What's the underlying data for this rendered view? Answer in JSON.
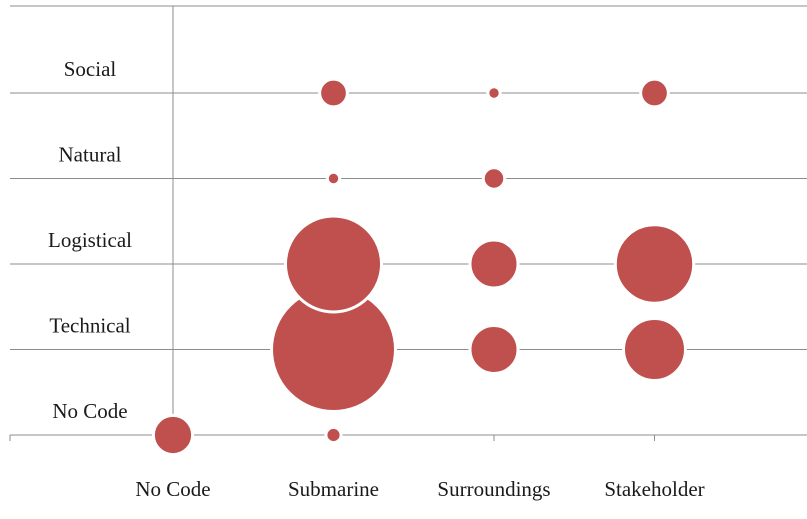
{
  "chart_data": {
    "type": "bubble",
    "title": "",
    "xlabel": "",
    "ylabel": "",
    "x_categories": [
      "No Code",
      "Submarine",
      "Surroundings",
      "Stakeholder"
    ],
    "y_categories": [
      "No Code",
      "Technical",
      "Logistical",
      "Natural",
      "Social"
    ],
    "grid": true,
    "legend": "none",
    "bubble_color": "#c0504d",
    "bubble_outline": "#ffffff",
    "points": [
      {
        "x": "No Code",
        "y": "No Code",
        "size": 2
      },
      {
        "x": "Submarine",
        "y": "No Code",
        "size": 0.3
      },
      {
        "x": "Submarine",
        "y": "Technical",
        "size": 20
      },
      {
        "x": "Submarine",
        "y": "Logistical",
        "size": 12
      },
      {
        "x": "Submarine",
        "y": "Natural",
        "size": 0.2
      },
      {
        "x": "Submarine",
        "y": "Social",
        "size": 1
      },
      {
        "x": "Surroundings",
        "y": "Technical",
        "size": 3
      },
      {
        "x": "Surroundings",
        "y": "Logistical",
        "size": 3
      },
      {
        "x": "Surroundings",
        "y": "Natural",
        "size": 0.6
      },
      {
        "x": "Surroundings",
        "y": "Social",
        "size": 0.2
      },
      {
        "x": "Stakeholder",
        "y": "Technical",
        "size": 5
      },
      {
        "x": "Stakeholder",
        "y": "Logistical",
        "size": 8
      },
      {
        "x": "Stakeholder",
        "y": "Social",
        "size": 1
      }
    ]
  }
}
